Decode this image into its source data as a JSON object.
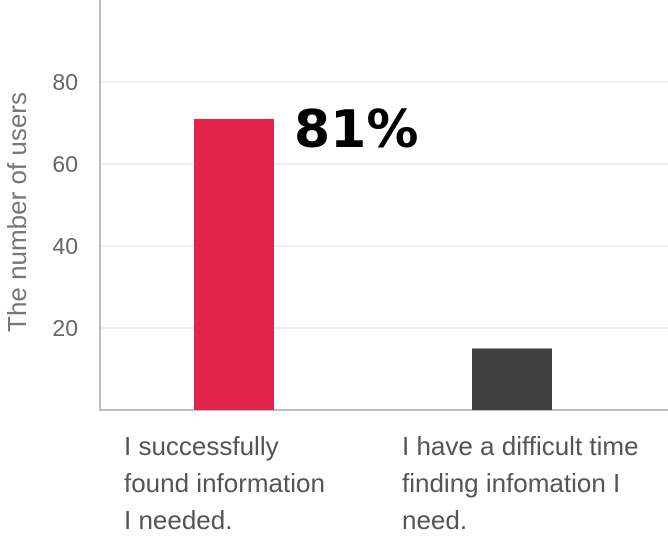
{
  "chart_data": {
    "type": "bar",
    "ylabel": "The number of users",
    "yticks": [
      20,
      40,
      60,
      80
    ],
    "ylim": [
      0,
      100
    ],
    "grid": true,
    "categories": [
      [
        "I successfully",
        "found information",
        "I needed."
      ],
      [
        "I have a difficult time",
        "finding infomation I",
        "need."
      ]
    ],
    "values": [
      71,
      15
    ],
    "colors": [
      "#e2244b",
      "#404040"
    ],
    "annotation": "81%"
  }
}
